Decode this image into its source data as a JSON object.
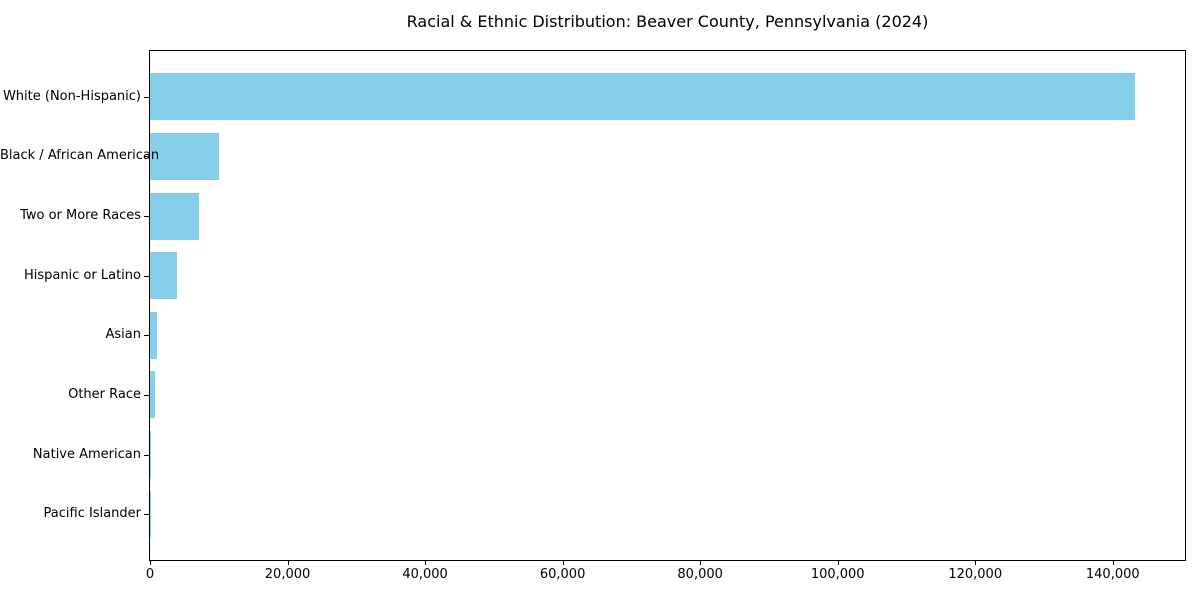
{
  "title": "Racial & Ethnic Distribution: Beaver County, Pennsylvania (2024)",
  "chart_data": {
    "type": "bar",
    "orientation": "horizontal",
    "title": "Racial & Ethnic Distribution: Beaver County, Pennsylvania (2024)",
    "xlabel": "",
    "ylabel": "",
    "categories": [
      "White (Non-Hispanic)",
      "Black / African American",
      "Two or More Races",
      "Hispanic or Latino",
      "Asian",
      "Other Race",
      "Native American",
      "Pacific Islander"
    ],
    "values": [
      143200,
      10100,
      7150,
      3900,
      950,
      700,
      150,
      30
    ],
    "xlim": [
      0,
      150500
    ],
    "x_ticks": [
      0,
      20000,
      40000,
      60000,
      80000,
      100000,
      120000,
      140000
    ],
    "x_tick_labels": [
      "0",
      "20,000",
      "40,000",
      "60,000",
      "80,000",
      "100,000",
      "120,000",
      "140,000"
    ],
    "bar_color": "#87CEEB",
    "grid": false,
    "legend": false,
    "background_color": "#ffffff",
    "axis_color": "#000000"
  }
}
